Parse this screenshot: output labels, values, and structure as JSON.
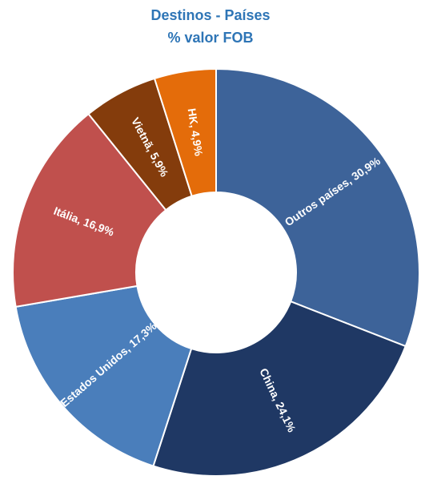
{
  "chart_data": {
    "type": "donut",
    "title": "Destinos - Países",
    "subtitle": "% valor FOB",
    "values": [
      30.9,
      24.1,
      17.3,
      16.9,
      5.9,
      4.9
    ],
    "value_labels": [
      "Outros países, 30,9%",
      "China, 24,1%",
      "Estados Unidos, 17,3%",
      "Itália, 16,9%",
      "Vietnã, 5,9%",
      "HK, 4,9%"
    ],
    "colors": [
      "#3d6399",
      "#1f3864",
      "#4a7ebb",
      "#c0504d",
      "#843c0c",
      "#e46c0a"
    ]
  }
}
